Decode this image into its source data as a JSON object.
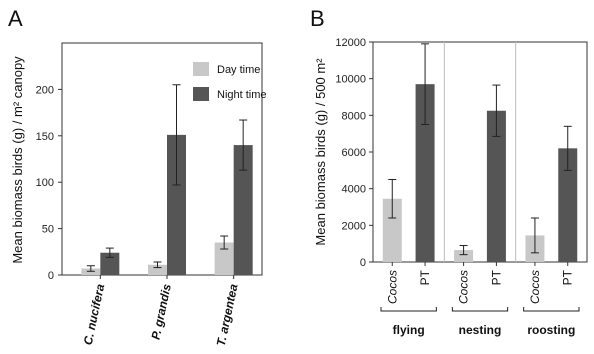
{
  "colors": {
    "day": "#c8c8c8",
    "night": "#555555",
    "divider": "#bbbbbb"
  },
  "chart_data": [
    {
      "type": "bar",
      "panel_label": "A",
      "ylabel": "Mean biomass birds  (g) / m² canopy",
      "ylim": [
        0,
        250
      ],
      "yticks": [
        "0",
        "50",
        "100",
        "150",
        "200"
      ],
      "categories": [
        "C. nucifera",
        "P. grandis",
        "T. argentea"
      ],
      "series": [
        {
          "name": "Day time",
          "values": [
            7,
            11,
            35
          ],
          "err": [
            3,
            3,
            7
          ]
        },
        {
          "name": "Night time",
          "values": [
            24,
            151,
            140
          ],
          "err": [
            5,
            54,
            27
          ]
        }
      ],
      "legend": "top-right"
    },
    {
      "type": "bar",
      "panel_label": "B",
      "ylabel": "Mean biomass birds (g) / 500 m²",
      "ylim": [
        0,
        12000
      ],
      "yticks": [
        "0",
        "2000",
        "4000",
        "6000",
        "8000",
        "10000",
        "12000"
      ],
      "groups": [
        "flying",
        "nesting",
        "roosting"
      ],
      "bar_labels": [
        "Cocos",
        "PT"
      ],
      "values": [
        [
          3450,
          9700
        ],
        [
          650,
          8250
        ],
        [
          1450,
          6200
        ]
      ],
      "err": [
        [
          1050,
          2200
        ],
        [
          250,
          1400
        ],
        [
          950,
          1200
        ]
      ]
    }
  ]
}
